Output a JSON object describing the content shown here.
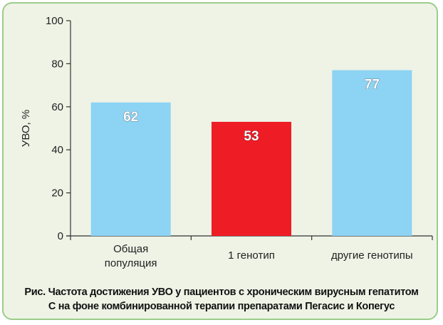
{
  "chart_data": {
    "type": "bar",
    "categories": [
      [
        "Общая",
        "популяция"
      ],
      [
        "1 генотип"
      ],
      [
        "другие генотипы"
      ]
    ],
    "values": [
      62,
      53,
      77
    ],
    "bar_colors": [
      "#8dd3f3",
      "#ee1c25",
      "#8dd3f3"
    ],
    "data_labels": [
      "62",
      "53",
      "77"
    ],
    "ylabel": "УВО, %",
    "ylim": [
      0,
      100
    ],
    "yticks": [
      "0",
      "20",
      "40",
      "60",
      "80",
      "100"
    ],
    "grid": false
  },
  "caption": {
    "line1": "Рис. Частота достижения УВО у пациентов с хроническим вирусным гепатитом",
    "line2": "С на фоне комбинированной терапии препаратами Пегасис и Копегус"
  },
  "colors": {
    "frame_border": "#9ccc8c",
    "frame_fill": "#eef3e6",
    "axis": "#333333"
  }
}
